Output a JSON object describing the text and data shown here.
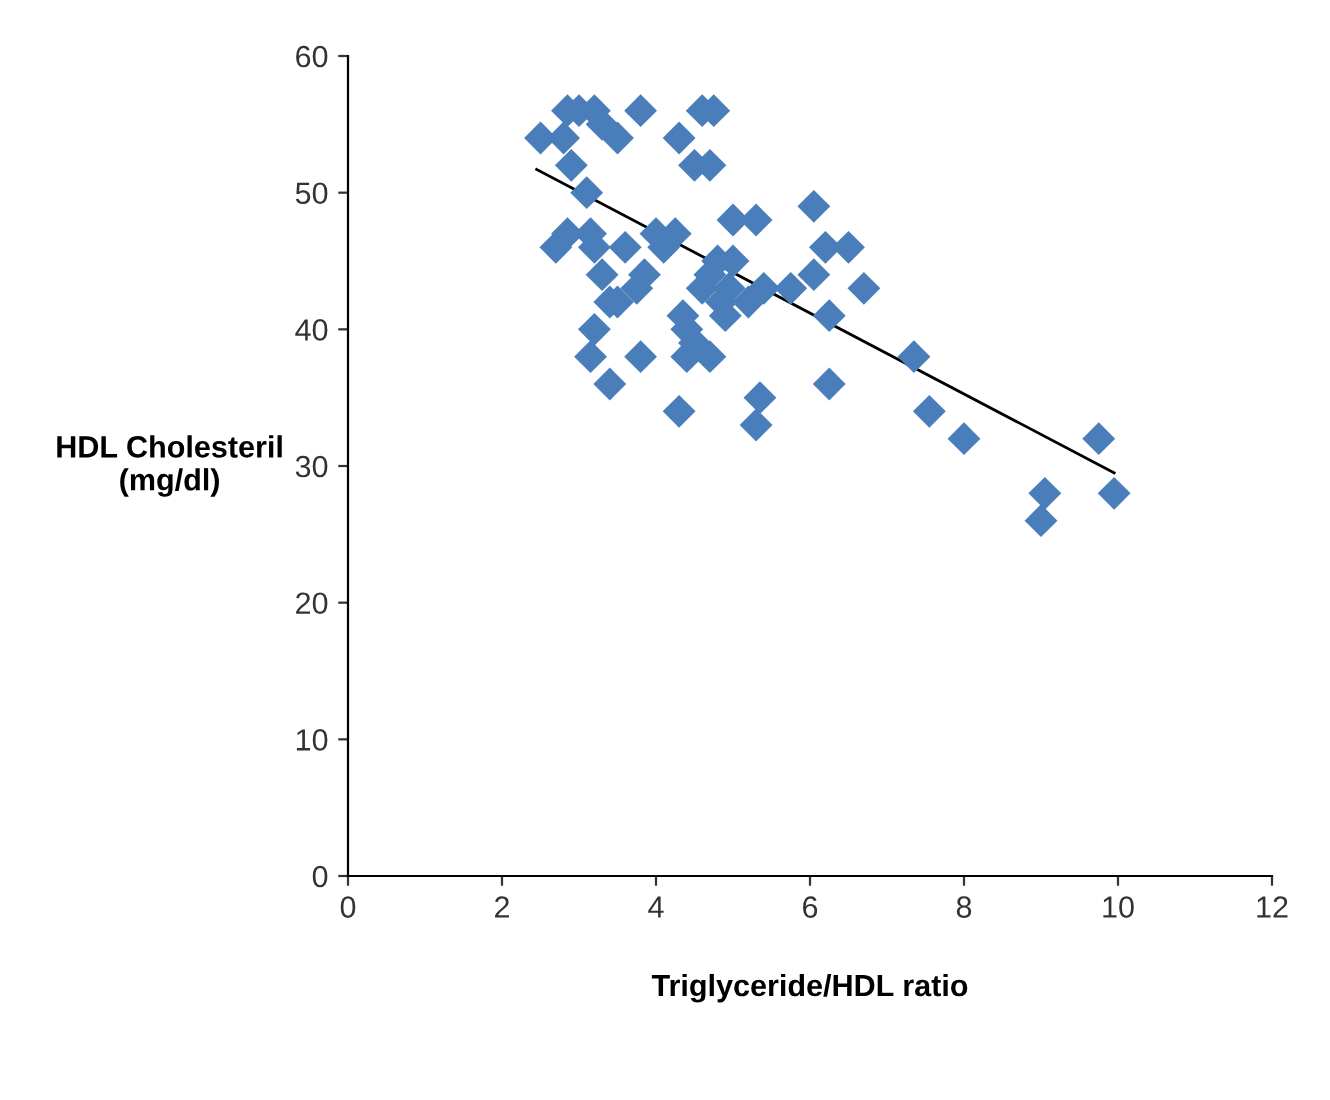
{
  "chart_data": {
    "type": "scatter",
    "xlabel": "Triglyceride/HDL ratio",
    "ylabel": "HDL Cholesteril\n(mg/dl)",
    "xlim": [
      0,
      12
    ],
    "ylim": [
      0,
      60
    ],
    "xticks": [
      0,
      2,
      4,
      6,
      8,
      10,
      12
    ],
    "yticks": [
      0,
      10,
      20,
      30,
      40,
      50,
      60
    ],
    "grid": false,
    "legend": false,
    "series": [
      {
        "marker": "diamond",
        "color": "#4a7ebb",
        "x": [
          2.5,
          2.8,
          2.85,
          3.0,
          3.2,
          3.3,
          2.9,
          3.1,
          3.5,
          3.8,
          4.3,
          4.5,
          4.6,
          4.75,
          4.7,
          2.7,
          2.85,
          3.15,
          3.2,
          3.6,
          3.3,
          3.4,
          3.5,
          3.2,
          3.15,
          3.4,
          3.75,
          3.85,
          3.8,
          4.0,
          4.1,
          4.25,
          4.3,
          4.35,
          4.4,
          4.4,
          4.5,
          4.6,
          4.7,
          4.7,
          4.8,
          4.85,
          4.9,
          5.0,
          5.0,
          4.95,
          5.3,
          5.2,
          5.35,
          5.3,
          5.4,
          5.75,
          6.05,
          6.05,
          6.2,
          6.25,
          6.25,
          6.5,
          6.7,
          7.35,
          7.55,
          8.0,
          9.0,
          9.05,
          9.75,
          9.95
        ],
        "values": [
          54,
          54,
          56,
          56,
          56,
          55,
          52,
          50,
          54,
          56,
          54,
          52,
          56,
          56,
          52,
          46,
          47,
          47,
          46,
          46,
          44,
          42,
          42,
          40,
          38,
          36,
          43,
          44,
          38,
          47,
          46,
          47,
          34,
          41,
          40,
          38,
          39,
          43,
          44,
          38,
          45,
          42,
          41,
          48,
          45,
          43,
          48,
          42,
          35,
          33,
          43,
          43,
          49,
          44,
          46,
          41,
          36,
          46,
          43,
          38,
          34,
          32,
          26,
          28,
          32,
          28
        ]
      },
      {
        "type": "line",
        "color": "#000000",
        "x": [
          2.45,
          9.95
        ],
        "values": [
          51.7,
          29.5
        ]
      }
    ]
  }
}
